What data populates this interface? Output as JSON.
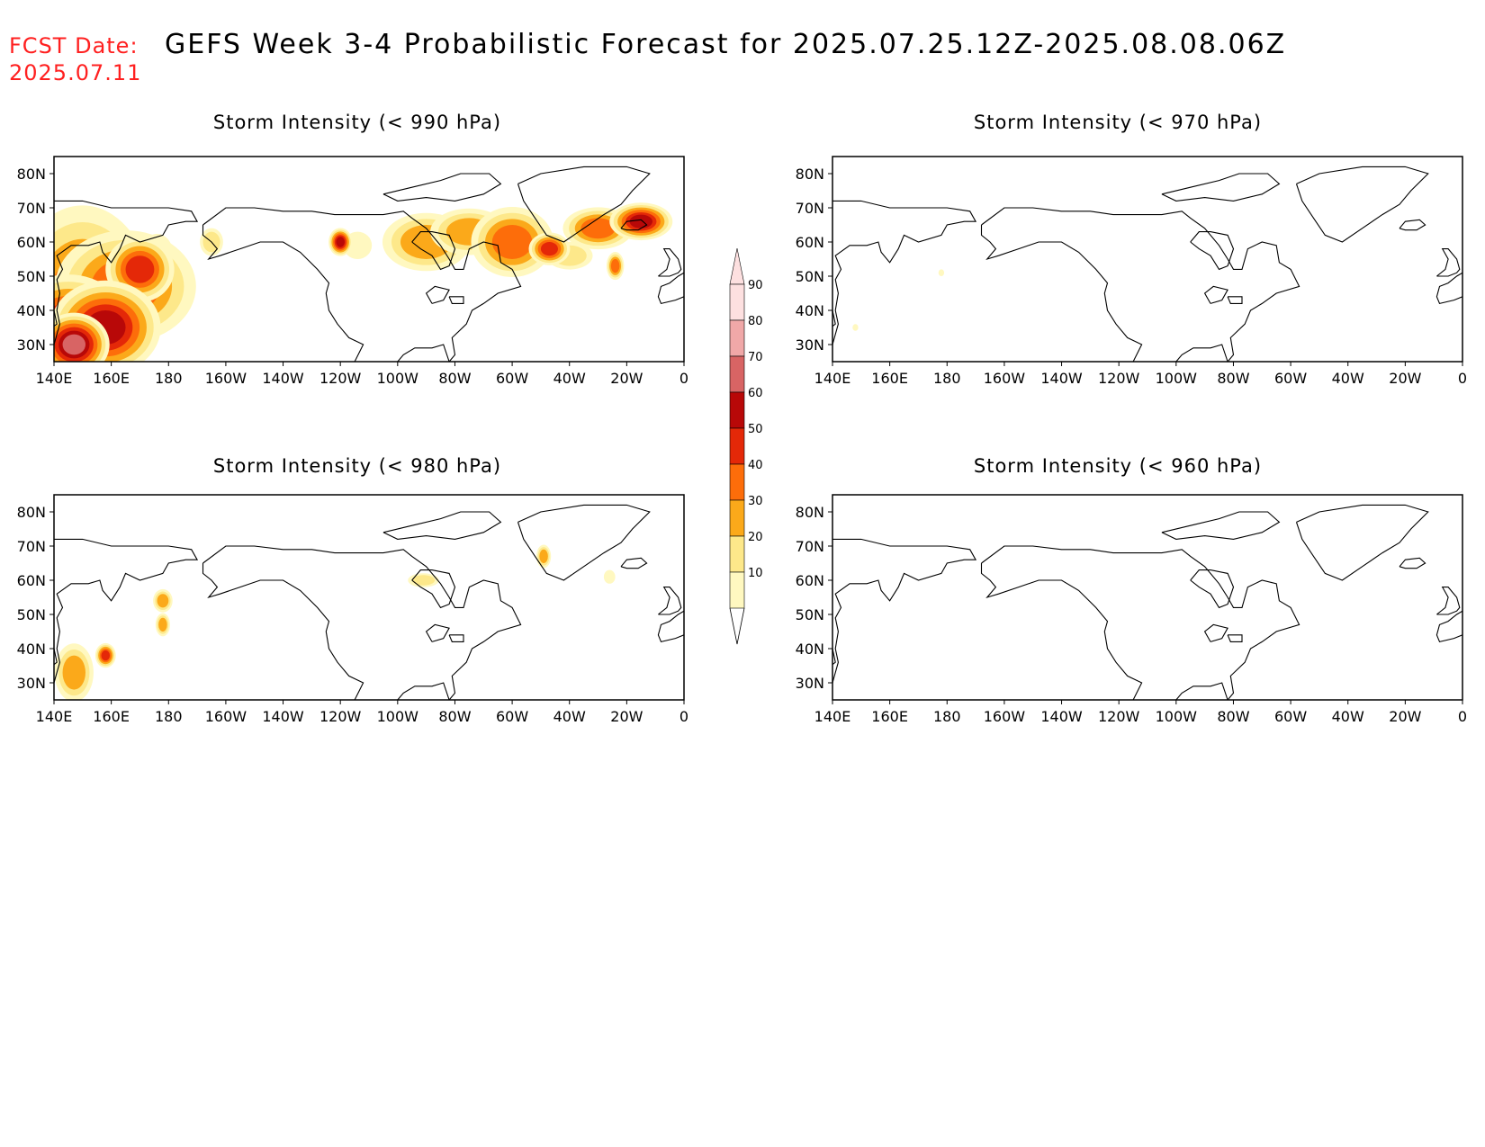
{
  "header": {
    "fcst_label": "FCST Date:",
    "fcst_date": "2025.07.11",
    "title": "GEFS Week 3-4 Probabilistic Forecast for 2025.07.25.12Z-2025.08.08.06Z"
  },
  "panels": [
    {
      "id": "p990",
      "title": "Storm Intensity (< 990 hPa)"
    },
    {
      "id": "p970",
      "title": "Storm Intensity (< 970 hPa)"
    },
    {
      "id": "p980",
      "title": "Storm Intensity (< 980 hPa)"
    },
    {
      "id": "p960",
      "title": "Storm Intensity (< 960 hPa)"
    }
  ],
  "axes": {
    "lat_labels": [
      "80N",
      "70N",
      "60N",
      "50N",
      "40N",
      "30N"
    ],
    "lat_values": [
      80,
      70,
      60,
      50,
      40,
      30
    ],
    "lon_labels": [
      "140E",
      "160E",
      "180",
      "160W",
      "140W",
      "120W",
      "100W",
      "80W",
      "60W",
      "40W",
      "20W",
      "0"
    ],
    "lon_values": [
      140,
      160,
      180,
      200,
      220,
      240,
      260,
      280,
      300,
      320,
      340,
      360
    ],
    "lon_range": [
      140,
      360
    ],
    "lat_range": [
      25,
      85
    ]
  },
  "colorbar": {
    "levels": [
      "10",
      "20",
      "30",
      "40",
      "50",
      "60",
      "70",
      "80",
      "90"
    ],
    "colors": [
      "#fff8c0",
      "#fde88a",
      "#fba91a",
      "#fd6d0a",
      "#e42808",
      "#b80808",
      "#d86464",
      "#f0a8a8",
      "#fde0e0"
    ]
  },
  "map_data": {
    "p990_blobs": [
      {
        "lon": 150,
        "lat": 42,
        "prob": 40,
        "rx": 12,
        "ry": 14
      },
      {
        "lon": 145,
        "lat": 34,
        "prob": 60,
        "rx": 8,
        "ry": 6
      },
      {
        "lon": 158,
        "lat": 35,
        "prob": 60,
        "rx": 7,
        "ry": 5
      },
      {
        "lon": 165,
        "lat": 47,
        "prob": 40,
        "rx": 12,
        "ry": 8
      },
      {
        "lon": 170,
        "lat": 52,
        "prob": 50,
        "rx": 5,
        "ry": 4
      },
      {
        "lon": 155,
        "lat": 55,
        "prob": 30,
        "rx": 6,
        "ry": 5
      },
      {
        "lon": 147,
        "lat": 30,
        "prob": 70,
        "rx": 4,
        "ry": 3
      },
      {
        "lon": 176,
        "lat": 57,
        "prob": 20,
        "rx": 4,
        "ry": 4
      },
      {
        "lon": 195,
        "lat": 60,
        "prob": 20,
        "rx": 3,
        "ry": 3
      },
      {
        "lon": 240,
        "lat": 60,
        "prob": 60,
        "rx": 1.5,
        "ry": 1.5
      },
      {
        "lon": 246,
        "lat": 59,
        "prob": 10,
        "rx": 5,
        "ry": 4
      },
      {
        "lon": 270,
        "lat": 60,
        "prob": 30,
        "rx": 9,
        "ry": 5
      },
      {
        "lon": 285,
        "lat": 63,
        "prob": 30,
        "rx": 8,
        "ry": 4
      },
      {
        "lon": 300,
        "lat": 60,
        "prob": 40,
        "rx": 7,
        "ry": 5
      },
      {
        "lon": 313,
        "lat": 58,
        "prob": 50,
        "rx": 3,
        "ry": 2
      },
      {
        "lon": 330,
        "lat": 64,
        "prob": 40,
        "rx": 6,
        "ry": 3
      },
      {
        "lon": 345,
        "lat": 66,
        "prob": 60,
        "rx": 4,
        "ry": 2
      },
      {
        "lon": 320,
        "lat": 56,
        "prob": 20,
        "rx": 6,
        "ry": 3
      },
      {
        "lon": 336,
        "lat": 53,
        "prob": 40,
        "rx": 1.5,
        "ry": 2
      },
      {
        "lon": 272,
        "lat": 55,
        "prob": 20,
        "rx": 3,
        "ry": 2
      }
    ],
    "p980_blobs": [
      {
        "lon": 147,
        "lat": 33,
        "prob": 30,
        "rx": 4,
        "ry": 5
      },
      {
        "lon": 158,
        "lat": 38,
        "prob": 50,
        "rx": 1.5,
        "ry": 1.5
      },
      {
        "lon": 178,
        "lat": 54,
        "prob": 30,
        "rx": 2,
        "ry": 2
      },
      {
        "lon": 178,
        "lat": 47,
        "prob": 30,
        "rx": 1.5,
        "ry": 2
      },
      {
        "lon": 269,
        "lat": 60,
        "prob": 20,
        "rx": 4,
        "ry": 1.5
      },
      {
        "lon": 311,
        "lat": 67,
        "prob": 30,
        "rx": 1.5,
        "ry": 2
      },
      {
        "lon": 334,
        "lat": 61,
        "prob": 10,
        "rx": 2,
        "ry": 2
      }
    ],
    "p970_blobs": [
      {
        "lon": 148,
        "lat": 35,
        "prob": 10,
        "rx": 1,
        "ry": 1
      },
      {
        "lon": 178,
        "lat": 51,
        "prob": 10,
        "rx": 1,
        "ry": 1
      }
    ],
    "p960_blobs": []
  }
}
